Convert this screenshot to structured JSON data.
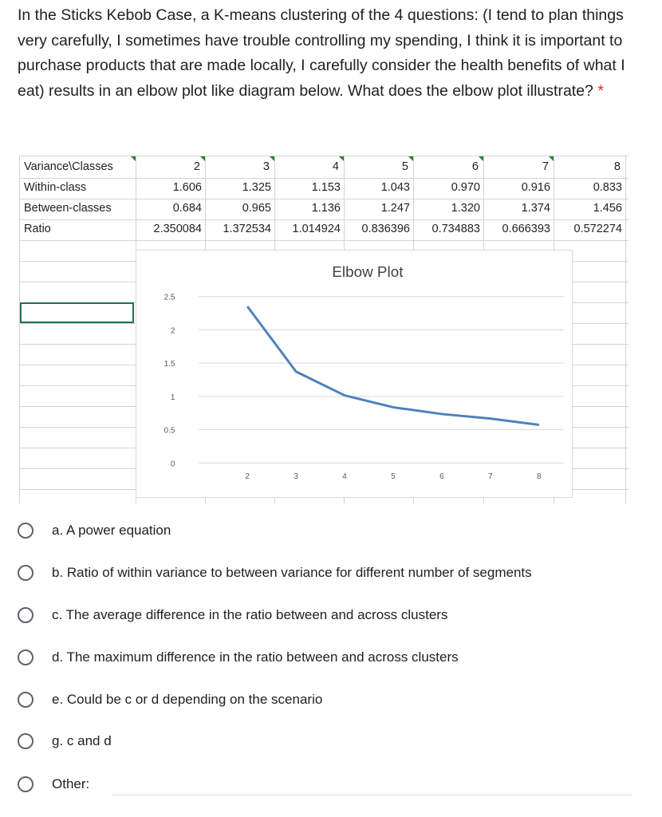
{
  "question": {
    "text": "In the Sticks Kebob Case, a K-means clustering of the 4 questions: (I tend to plan things very carefully, I sometimes have trouble controlling my spending, I think it is important to purchase products that are made locally, I carefully consider the health benefits of what I eat) results in an elbow plot like diagram below. What does the elbow plot illustrate?",
    "required_mark": "*"
  },
  "table": {
    "header_label": "Variance\\Classes",
    "classes": [
      "2",
      "3",
      "4",
      "5",
      "6",
      "7",
      "8"
    ],
    "rows": [
      {
        "label": "Within-class",
        "values": [
          "1.606",
          "1.325",
          "1.153",
          "1.043",
          "0.970",
          "0.916",
          "0.833"
        ]
      },
      {
        "label": "Between-classes",
        "values": [
          "0.684",
          "0.965",
          "1.136",
          "1.247",
          "1.320",
          "1.374",
          "1.456"
        ]
      },
      {
        "label": "Ratio",
        "values": [
          "2.350084",
          "1.372534",
          "1.014924",
          "0.836396",
          "0.734883",
          "0.666393",
          "0.572274"
        ]
      }
    ]
  },
  "chart_data": {
    "type": "line",
    "title": "Elbow Plot",
    "x": [
      2,
      3,
      4,
      5,
      6,
      7,
      8
    ],
    "series": [
      {
        "values": [
          2.350084,
          1.372534,
          1.014924,
          0.836396,
          0.734883,
          0.666393,
          0.572274
        ]
      }
    ],
    "x_ticks": [
      "2",
      "3",
      "4",
      "5",
      "6",
      "7",
      "8"
    ],
    "y_ticks": [
      "0",
      "0.5",
      "1",
      "1.5",
      "2",
      "2.5"
    ],
    "xlabel": "",
    "ylabel": "",
    "ylim": [
      0,
      2.5
    ],
    "xlim": [
      1,
      8.5
    ],
    "grid": "horizontal",
    "line_color": "#4f81bd"
  },
  "options": [
    {
      "letter": "a",
      "label": "a. A power equation"
    },
    {
      "letter": "b",
      "label": "b. Ratio of within variance to between variance for different number of segments"
    },
    {
      "letter": "c",
      "label": "c. The average difference in the ratio between and across clusters"
    },
    {
      "letter": "d",
      "label": "d. The maximum difference in the ratio between and across clusters"
    },
    {
      "letter": "e",
      "label": "e. Could be c or d depending on the scenario"
    },
    {
      "letter": "g",
      "label": "g. c and d"
    },
    {
      "letter": "other",
      "label": "Other:"
    }
  ]
}
